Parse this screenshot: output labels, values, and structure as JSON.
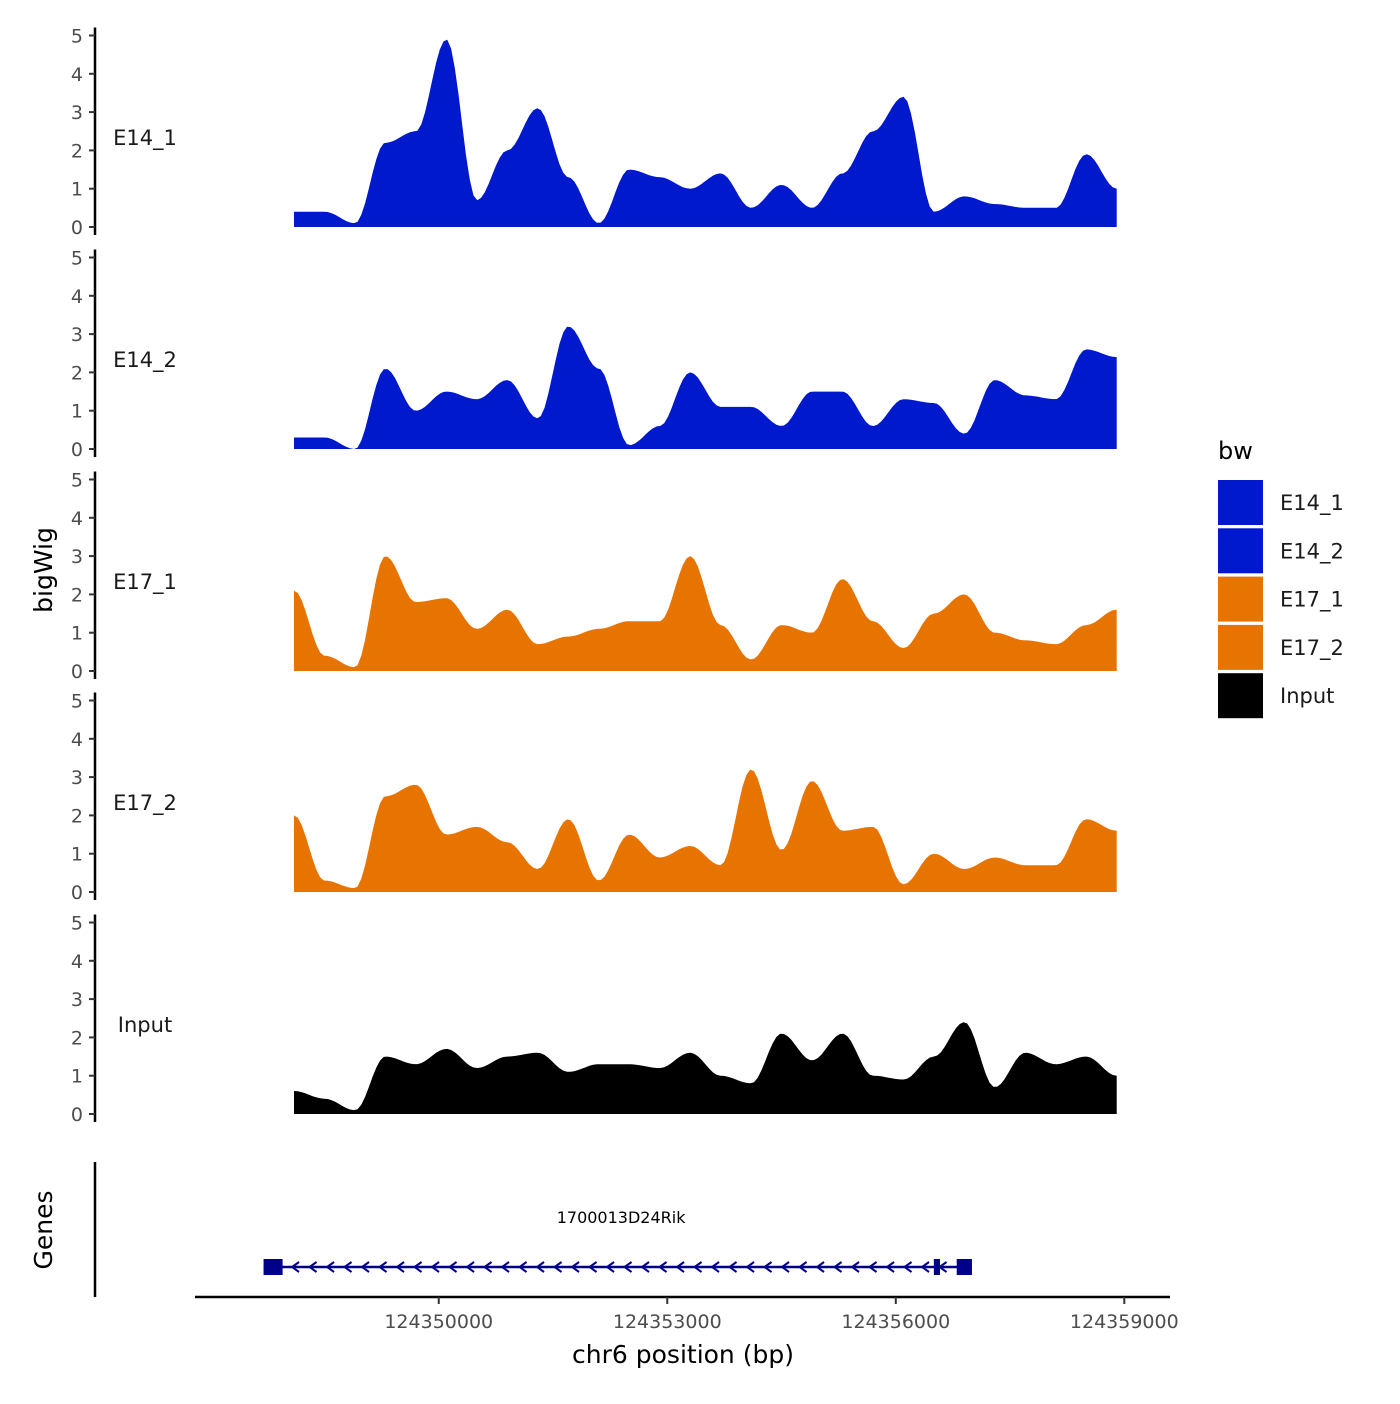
{
  "chart_data": {
    "type": "area",
    "ylabel": "bigWig",
    "xlabel": "chr6 position (bp)",
    "xlim": [
      124346800,
      124359600
    ],
    "ylim": [
      0,
      5
    ],
    "y_ticks": [
      "0",
      "1",
      "2",
      "3",
      "4",
      "5"
    ],
    "x_ticks": [
      {
        "value": 124350000,
        "label": "124350000"
      },
      {
        "value": 124353000,
        "label": "124353000"
      },
      {
        "value": 124356000,
        "label": "124356000"
      },
      {
        "value": 124359000,
        "label": "124359000"
      }
    ],
    "legend": {
      "title": "bw",
      "position": "right",
      "items": [
        {
          "name": "E14_1",
          "color": "#0019CC"
        },
        {
          "name": "E14_2",
          "color": "#0019CC"
        },
        {
          "name": "E17_1",
          "color": "#E87400"
        },
        {
          "name": "E17_2",
          "color": "#E87400"
        },
        {
          "name": "Input",
          "color": "#000000"
        }
      ]
    },
    "x": [
      124348100,
      124348500,
      124348900,
      124349300,
      124349700,
      124350100,
      124350500,
      124350900,
      124351300,
      124351700,
      124352100,
      124352500,
      124352900,
      124353300,
      124353700,
      124354100,
      124354500,
      124354900,
      124355300,
      124355700,
      124356100,
      124356500,
      124356900,
      124357300,
      124357700,
      124358100,
      124358500,
      124358900
    ],
    "series": [
      {
        "name": "E14_1",
        "color": "#0019CC",
        "values": [
          0.4,
          0.4,
          0.1,
          2.2,
          2.5,
          4.9,
          0.7,
          2.0,
          3.1,
          1.3,
          0.1,
          1.5,
          1.3,
          1.0,
          1.4,
          0.5,
          1.1,
          0.5,
          1.4,
          2.5,
          3.4,
          0.4,
          0.8,
          0.6,
          0.5,
          0.5,
          1.9,
          1.0
        ]
      },
      {
        "name": "E14_2",
        "color": "#0019CC",
        "values": [
          0.3,
          0.3,
          0.0,
          2.1,
          1.0,
          1.5,
          1.3,
          1.8,
          0.8,
          3.2,
          2.1,
          0.1,
          0.6,
          2.0,
          1.1,
          1.1,
          0.6,
          1.5,
          1.5,
          0.6,
          1.3,
          1.2,
          0.4,
          1.8,
          1.4,
          1.3,
          2.6,
          2.4
        ]
      },
      {
        "name": "E17_1",
        "color": "#E87400",
        "values": [
          2.1,
          0.4,
          0.1,
          3.0,
          1.8,
          1.9,
          1.1,
          1.6,
          0.7,
          0.9,
          1.1,
          1.3,
          1.3,
          3.0,
          1.2,
          0.3,
          1.2,
          1.0,
          2.4,
          1.3,
          0.6,
          1.5,
          2.0,
          1.0,
          0.8,
          0.7,
          1.2,
          1.6
        ]
      },
      {
        "name": "E17_2",
        "color": "#E87400",
        "values": [
          2.0,
          0.3,
          0.1,
          2.5,
          2.8,
          1.5,
          1.7,
          1.3,
          0.6,
          1.9,
          0.3,
          1.5,
          0.9,
          1.2,
          0.7,
          3.2,
          1.1,
          2.9,
          1.6,
          1.7,
          0.2,
          1.0,
          0.6,
          0.9,
          0.7,
          0.7,
          1.9,
          1.6
        ]
      },
      {
        "name": "Input",
        "color": "#000000",
        "values": [
          0.6,
          0.4,
          0.1,
          1.5,
          1.3,
          1.7,
          1.2,
          1.5,
          1.6,
          1.1,
          1.3,
          1.3,
          1.2,
          1.6,
          1.0,
          0.8,
          2.1,
          1.4,
          2.1,
          1.0,
          0.9,
          1.5,
          2.4,
          0.7,
          1.6,
          1.3,
          1.5,
          1.0
        ]
      }
    ],
    "genes": [
      {
        "name": "1700013D24Rik",
        "start": 124347700,
        "end": 124357000,
        "strand": "-",
        "exons": [
          [
            124347700,
            124347950
          ],
          [
            124356500,
            124356580
          ],
          [
            124356800,
            124357000
          ]
        ],
        "color": "#00008B"
      }
    ],
    "gene_track_label": "Genes"
  }
}
